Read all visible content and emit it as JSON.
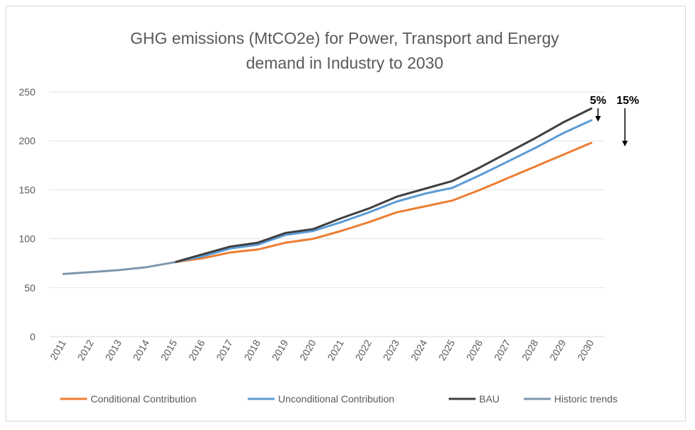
{
  "chart_data": {
    "type": "line",
    "title_line1": "GHG emissions (MtCO2e) for Power, Transport and Energy",
    "title_line2": "demand in Industry to 2030",
    "xlabel": "",
    "ylabel": "",
    "ylim": [
      0,
      250
    ],
    "y_ticks": [
      0,
      50,
      100,
      150,
      200,
      250
    ],
    "grid": true,
    "legend_position": "bottom",
    "categories": [
      "2011",
      "2012",
      "2013",
      "2014",
      "2015",
      "2016",
      "2017",
      "2018",
      "2019",
      "2020",
      "2021",
      "2022",
      "2023",
      "2024",
      "2025",
      "2026",
      "2027",
      "2028",
      "2029",
      "2030"
    ],
    "series": [
      {
        "name": "Conditional Contribution",
        "color": "#ed7d31",
        "values": [
          null,
          null,
          null,
          null,
          76,
          80,
          86,
          89,
          96,
          100,
          108,
          117,
          127,
          133,
          139,
          150,
          162,
          174,
          186,
          198
        ]
      },
      {
        "name": "Unconditional Contribution",
        "color": "#5b9bd5",
        "values": [
          null,
          null,
          null,
          null,
          76,
          82,
          90,
          94,
          104,
          108,
          117,
          127,
          138,
          146,
          152,
          165,
          179,
          193,
          208,
          221
        ]
      },
      {
        "name": "BAU",
        "color": "#404040",
        "values": [
          null,
          null,
          null,
          null,
          76,
          84,
          92,
          96,
          106,
          110,
          121,
          131,
          143,
          151,
          159,
          173,
          188,
          203,
          219,
          233
        ]
      },
      {
        "name": "Historic trends",
        "color": "#7f96ad",
        "values": [
          64,
          66,
          68,
          71,
          76,
          null,
          null,
          null,
          null,
          null,
          null,
          null,
          null,
          null,
          null,
          null,
          null,
          null,
          null,
          null
        ]
      }
    ],
    "annotations": [
      {
        "text": "5%"
      },
      {
        "text": "15%"
      }
    ]
  }
}
